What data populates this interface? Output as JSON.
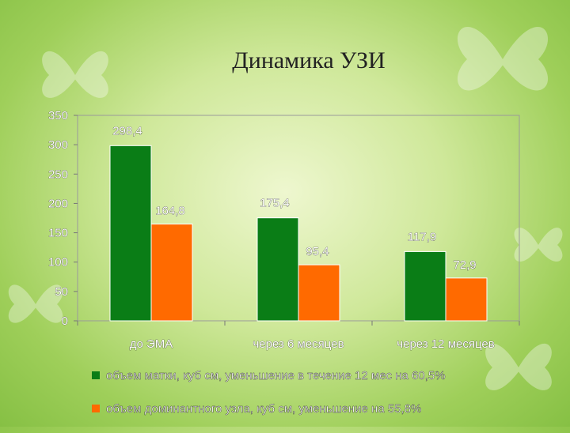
{
  "title": "Динамика УЗИ",
  "colors": {
    "series1": "#0a7d16",
    "series2": "#ff6a00"
  },
  "chart_data": {
    "type": "bar",
    "categories": [
      "до ЭМА",
      "через 6 месяцев",
      "через 12 месяцев"
    ],
    "series": [
      {
        "name": "объем матки, куб см, уменьшение в течение 12 мес на 60,5%",
        "values": [
          298.4,
          175.4,
          117.9
        ],
        "labels": [
          "298,4",
          "175,4",
          "117,9"
        ]
      },
      {
        "name": "объем доминантного узла, куб см, уменьшение на 55,8%",
        "values": [
          164.8,
          95.4,
          72.9
        ],
        "labels": [
          "164,8",
          "95,4",
          "72,9"
        ]
      }
    ],
    "ylim": [
      0,
      350
    ],
    "yticks": [
      "0",
      "50",
      "100",
      "150",
      "200",
      "250",
      "300",
      "350"
    ],
    "legend_position": "bottom"
  }
}
